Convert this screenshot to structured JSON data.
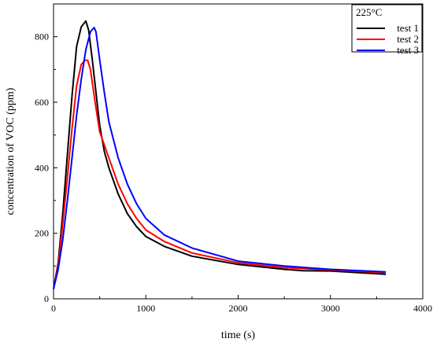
{
  "chart_data": {
    "type": "line",
    "title": "",
    "xlabel": "time (s)",
    "ylabel": "concentration of VOC (ppm)",
    "xlim": [
      0,
      4000
    ],
    "ylim": [
      0,
      900
    ],
    "x_ticks": [
      0,
      1000,
      2000,
      3000,
      4000
    ],
    "y_ticks": [
      0,
      200,
      400,
      600,
      800
    ],
    "grid": false,
    "legend": {
      "title": "225°C",
      "position": "top-right"
    },
    "series": [
      {
        "name": "test 1",
        "color": "#000000",
        "x": [
          0,
          50,
          100,
          150,
          200,
          250,
          300,
          350,
          380,
          420,
          460,
          500,
          550,
          600,
          700,
          800,
          900,
          1000,
          1200,
          1500,
          2000,
          2500,
          2700,
          3000,
          3600
        ],
        "y": [
          30,
          110,
          260,
          440,
          620,
          770,
          830,
          848,
          820,
          730,
          630,
          530,
          450,
          400,
          320,
          260,
          220,
          190,
          160,
          130,
          105,
          90,
          86,
          85,
          75
        ]
      },
      {
        "name": "test 2",
        "color": "#ff0000",
        "x": [
          0,
          50,
          100,
          150,
          200,
          250,
          300,
          340,
          370,
          400,
          450,
          500,
          600,
          700,
          800,
          900,
          1000,
          1200,
          1500,
          2000,
          2500,
          3000,
          3600
        ],
        "y": [
          30,
          100,
          230,
          370,
          520,
          650,
          715,
          728,
          728,
          700,
          600,
          510,
          430,
          350,
          290,
          245,
          210,
          175,
          140,
          110,
          95,
          88,
          80
        ]
      },
      {
        "name": "test 3",
        "color": "#0000ff",
        "x": [
          0,
          50,
          100,
          150,
          200,
          250,
          300,
          350,
          400,
          440,
          460,
          500,
          550,
          600,
          700,
          800,
          900,
          1000,
          1200,
          1500,
          2000,
          2500,
          3000,
          3600
        ],
        "y": [
          30,
          90,
          180,
          300,
          430,
          560,
          670,
          760,
          815,
          828,
          815,
          730,
          630,
          540,
          430,
          350,
          290,
          245,
          195,
          155,
          115,
          100,
          90,
          82
        ]
      }
    ]
  }
}
